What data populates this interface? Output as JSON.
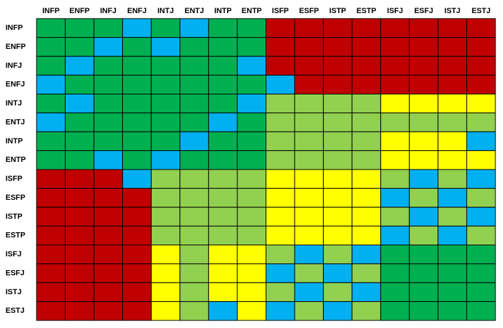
{
  "grid": {
    "palette": {
      "G": "#00b050",
      "B": "#00b0f0",
      "R": "#c00000",
      "L": "#92d050",
      "Y": "#ffff00"
    },
    "columns": [
      "INFP",
      "ENFP",
      "INFJ",
      "ENFJ",
      "INTJ",
      "ENTJ",
      "INTP",
      "ENTP",
      "ISFP",
      "ESFP",
      "ISTP",
      "ESTP",
      "ISFJ",
      "ESFJ",
      "ISTJ",
      "ESTJ"
    ],
    "rows": [
      {
        "label": "INFP",
        "cells": "GGGBGBGGRRRRRRRR"
      },
      {
        "label": "ENFP",
        "cells": "GGBGBGGGRRRRRRRR"
      },
      {
        "label": "INFJ",
        "cells": "GBGGGGGBRRRRRRRR"
      },
      {
        "label": "ENFJ",
        "cells": "BGGGGGGGBRRRRRRR"
      },
      {
        "label": "INTJ",
        "cells": "GBGGGGGBLLLLYYYY"
      },
      {
        "label": "ENTJ",
        "cells": "BGGGGGBGLLLLLLLL"
      },
      {
        "label": "INTP",
        "cells": "GGGGGBGGLLLLYYYB"
      },
      {
        "label": "ENTP",
        "cells": "GGBGBGGGLLLLYYYY"
      },
      {
        "label": "ISFP",
        "cells": "RRRBLLLLYYYYLBLB"
      },
      {
        "label": "ESFP",
        "cells": "RRRRLLLLYYYYBLBL"
      },
      {
        "label": "ISTP",
        "cells": "RRRRLLLLYYYYLBLB"
      },
      {
        "label": "ESTP",
        "cells": "RRRRLLLLYYYYBLBL"
      },
      {
        "label": "ISFJ",
        "cells": "RRRRYLYYLBLBGGGG"
      },
      {
        "label": "ESFJ",
        "cells": "RRRRYLYYBLBLGGGG"
      },
      {
        "label": "ISTJ",
        "cells": "RRRRYLYYLBLBGGGG"
      },
      {
        "label": "ESTJ",
        "cells": "RRRRYLBYBLBLGGGG"
      }
    ]
  }
}
